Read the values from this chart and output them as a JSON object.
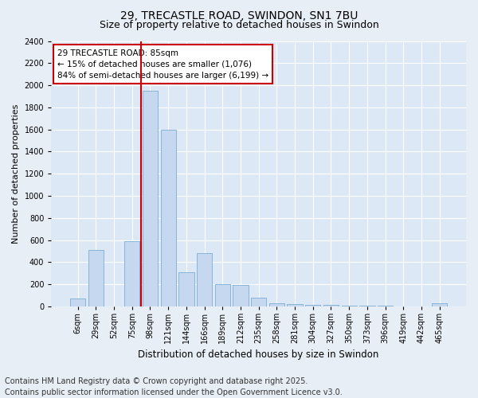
{
  "title1": "29, TRECASTLE ROAD, SWINDON, SN1 7BU",
  "title2": "Size of property relative to detached houses in Swindon",
  "xlabel": "Distribution of detached houses by size in Swindon",
  "ylabel": "Number of detached properties",
  "categories": [
    "6sqm",
    "29sqm",
    "52sqm",
    "75sqm",
    "98sqm",
    "121sqm",
    "144sqm",
    "166sqm",
    "189sqm",
    "212sqm",
    "235sqm",
    "258sqm",
    "281sqm",
    "304sqm",
    "327sqm",
    "350sqm",
    "373sqm",
    "396sqm",
    "419sqm",
    "442sqm",
    "465sqm"
  ],
  "values": [
    70,
    510,
    0,
    590,
    1950,
    1600,
    310,
    480,
    200,
    195,
    75,
    30,
    20,
    15,
    10,
    5,
    5,
    5,
    0,
    0,
    30
  ],
  "bar_color": "#c5d8f0",
  "bar_edge_color": "#7aadd4",
  "vline_x_index": 4.0,
  "vline_color": "#cc0000",
  "annotation_text": "29 TRECASTLE ROAD: 85sqm\n← 15% of detached houses are smaller (1,076)\n84% of semi-detached houses are larger (6,199) →",
  "annotation_box_color": "#cc0000",
  "ylim": [
    0,
    2400
  ],
  "yticks": [
    0,
    200,
    400,
    600,
    800,
    1000,
    1200,
    1400,
    1600,
    1800,
    2000,
    2200,
    2400
  ],
  "footnote": "Contains HM Land Registry data © Crown copyright and database right 2025.\nContains public sector information licensed under the Open Government Licence v3.0.",
  "bg_color": "#e8eef5",
  "plot_bg_color": "#dce8f5",
  "grid_color": "#ffffff",
  "title1_fontsize": 10,
  "title2_fontsize": 9,
  "footnote_fontsize": 7,
  "tick_fontsize": 7,
  "ylabel_fontsize": 8,
  "xlabel_fontsize": 8.5
}
